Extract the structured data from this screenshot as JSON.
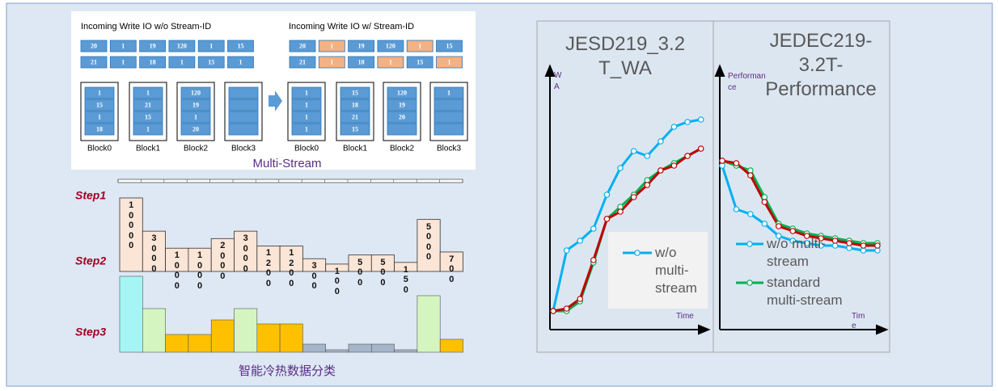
{
  "diagram": {
    "left": {
      "title": "Incoming Write IO w/o Stream-ID",
      "rows": [
        [
          20,
          1,
          19,
          120,
          1,
          15
        ],
        [
          21,
          1,
          18,
          1,
          15,
          1
        ]
      ],
      "row_colors": [
        [
          "#5b9bd5",
          "#5b9bd5",
          "#5b9bd5",
          "#5b9bd5",
          "#5b9bd5",
          "#5b9bd5"
        ],
        [
          "#5b9bd5",
          "#5b9bd5",
          "#5b9bd5",
          "#5b9bd5",
          "#5b9bd5",
          "#5b9bd5"
        ]
      ],
      "blocks": [
        {
          "label": "Block0",
          "cells": [
            1,
            15,
            1,
            18
          ]
        },
        {
          "label": "Block1",
          "cells": [
            1,
            21,
            15,
            1
          ]
        },
        {
          "label": "Block2",
          "cells": [
            120,
            19,
            1,
            20
          ]
        },
        {
          "label": "Block3",
          "cells": [
            null,
            null,
            null,
            null
          ]
        }
      ]
    },
    "right": {
      "title": "Incoming Write IO w/ Stream-ID",
      "rows": [
        [
          20,
          1,
          19,
          120,
          1,
          15
        ],
        [
          21,
          1,
          18,
          1,
          15,
          1
        ]
      ],
      "row_colors": [
        [
          "#5b9bd5",
          "#f4b183",
          "#5b9bd5",
          "#5b9bd5",
          "#f4b183",
          "#5b9bd5"
        ],
        [
          "#5b9bd5",
          "#f4b183",
          "#5b9bd5",
          "#f4b183",
          "#5b9bd5",
          "#f4b183"
        ]
      ],
      "blocks": [
        {
          "label": "Block0",
          "cells": [
            1,
            1,
            1,
            1
          ]
        },
        {
          "label": "Block1",
          "cells": [
            15,
            18,
            21,
            15
          ]
        },
        {
          "label": "Block2",
          "cells": [
            120,
            19,
            20,
            null
          ]
        },
        {
          "label": "Block3",
          "cells": [
            1,
            null,
            null,
            null
          ]
        }
      ]
    },
    "label": "Multi-Stream"
  },
  "chart_data": [
    {
      "type": "bar",
      "step_labels": [
        "Step1",
        "Step2",
        "Step3"
      ],
      "caption": "智能冷热数据分类",
      "values": [
        10000,
        3000,
        1000,
        1000,
        2000,
        3000,
        1200,
        1200,
        300,
        100,
        500,
        500,
        150,
        5000,
        700
      ],
      "color": "#fbe5d6",
      "yscale": "sqrt",
      "ylim": [
        0,
        10000
      ]
    },
    {
      "type": "line",
      "title": "JESD219_3.2 T_WA",
      "ylabel": "WA",
      "xlabel": "Time",
      "x": [
        1,
        2,
        3,
        4,
        5,
        6,
        7,
        8,
        9,
        10,
        11,
        12
      ],
      "xlim": [
        0.76,
        12.2
      ],
      "ylim": [
        0,
        100
      ],
      "legend_box": true,
      "series": [
        {
          "name": "w/o multi-stream",
          "color": "#00b0f0",
          "values": [
            5,
            30,
            34,
            39,
            53,
            64,
            71,
            69,
            75,
            81,
            83,
            84
          ]
        },
        {
          "color": "#00b050",
          "values": [
            5,
            5,
            9,
            25,
            43,
            48,
            53,
            59,
            63,
            66,
            69,
            72
          ]
        },
        {
          "color": "#c00000",
          "values": [
            5,
            6,
            10,
            26,
            43,
            46,
            52,
            57,
            63,
            65,
            69,
            72
          ]
        }
      ]
    },
    {
      "type": "line",
      "title": "JEDEC219-3.2T-Performance",
      "ylabel": "Performance",
      "xlabel": "Time",
      "x": [
        1,
        2,
        3,
        4,
        5,
        6,
        7,
        8,
        9,
        10,
        11,
        12
      ],
      "xlim": [
        0.83,
        12.29
      ],
      "ylim": [
        0,
        100
      ],
      "legend_box": false,
      "series": [
        {
          "name": "w/o multi-stream",
          "color": "#00b0f0",
          "values": [
            65,
            47,
            45,
            41,
            36,
            34,
            33,
            32,
            32,
            31,
            30,
            30
          ]
        },
        {
          "name": "standard multi-stream",
          "color": "#00b050",
          "values": [
            67,
            65,
            63,
            52,
            41,
            39,
            37,
            36,
            35,
            34,
            33,
            33
          ]
        },
        {
          "color": "#c00000",
          "values": [
            67,
            66,
            61,
            50,
            40,
            38,
            36,
            35,
            34,
            33,
            32,
            32
          ]
        }
      ]
    }
  ]
}
